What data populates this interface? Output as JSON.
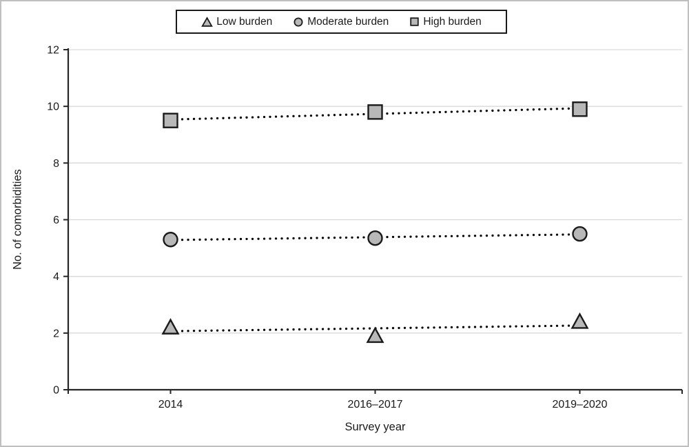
{
  "chart_data": {
    "type": "scatter",
    "categories": [
      "2014",
      "2016–2017",
      "2019–2020"
    ],
    "series": [
      {
        "name": "Low burden",
        "marker": "triangle",
        "values": [
          2.2,
          1.9,
          2.4
        ],
        "trend": "linear-dotted"
      },
      {
        "name": "Moderate burden",
        "marker": "circle",
        "values": [
          5.3,
          5.35,
          5.5
        ],
        "trend": "linear-dotted"
      },
      {
        "name": "High burden",
        "marker": "square",
        "values": [
          9.5,
          9.8,
          9.9
        ],
        "trend": "linear-dotted"
      }
    ],
    "xlabel": "Survey year",
    "ylabel": "No. of comorbidities",
    "ylim": [
      0,
      12
    ],
    "yticks": [
      0,
      2,
      4,
      6,
      8,
      10,
      12
    ],
    "grid": true,
    "legend_position": "top-center",
    "colors": {
      "marker_fill": "#b8b8b8",
      "marker_stroke": "#1a1a1a",
      "trendline": "#000000",
      "gridline": "#d9d9d9",
      "axis": "#262626",
      "text": "#1a1a1a",
      "figure_border": "#bfbfbf",
      "legend_border": "#1a1a1a"
    }
  }
}
